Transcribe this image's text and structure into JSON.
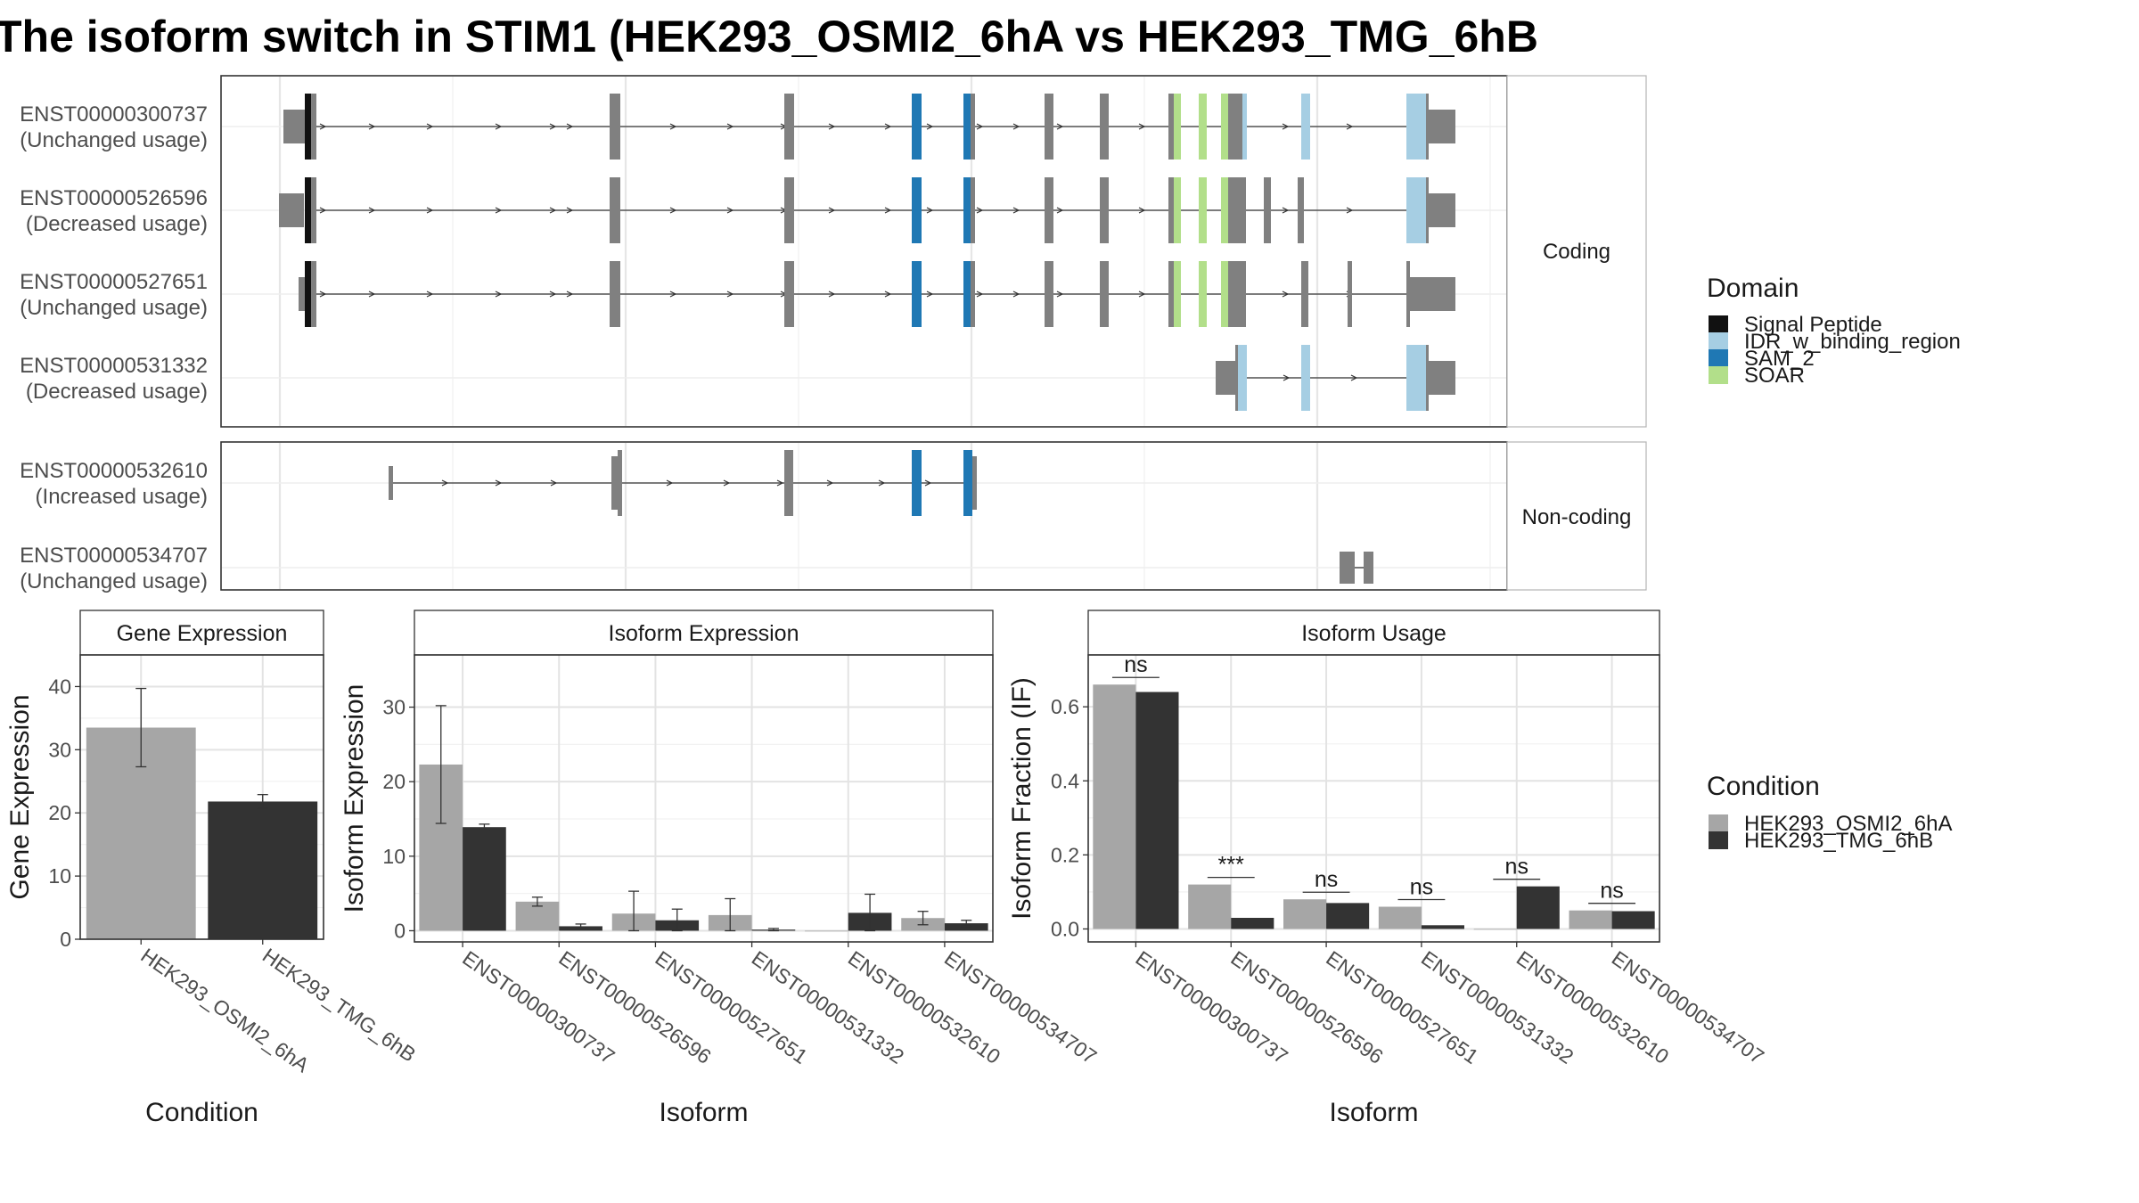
{
  "title": "The isoform switch in STIM1 (HEK293_OSMI2_6hA vs HEK293_TMG_6hB",
  "colors": {
    "signal_peptide": "#111111",
    "idr": "#a6cee3",
    "sam2": "#1f78b4",
    "soar": "#b2df8a",
    "exon": "#808080",
    "cond_a": "#a6a6a6",
    "cond_b": "#333333"
  },
  "structure": {
    "facets": [
      "Coding",
      "Non-coding"
    ],
    "coding_tracks": [
      {
        "id": "ENST00000300737",
        "usage": "(Unchanged usage)"
      },
      {
        "id": "ENST00000526596",
        "usage": "(Decreased usage)"
      },
      {
        "id": "ENST00000527651",
        "usage": "(Unchanged usage)"
      },
      {
        "id": "ENST00000531332",
        "usage": "(Decreased usage)"
      }
    ],
    "noncoding_tracks": [
      {
        "id": "ENST00000532610",
        "usage": "(Increased usage)"
      },
      {
        "id": "ENST00000534707",
        "usage": "(Unchanged usage)"
      }
    ]
  },
  "legend_domain": {
    "title": "Domain",
    "items": [
      {
        "label": "Signal Peptide",
        "color": "#111111"
      },
      {
        "label": "IDR_w_binding_region",
        "color": "#a6cee3"
      },
      {
        "label": "SAM_2",
        "color": "#1f78b4"
      },
      {
        "label": "SOAR",
        "color": "#b2df8a"
      }
    ]
  },
  "legend_condition": {
    "title": "Condition",
    "items": [
      {
        "label": "HEK293_OSMI2_6hA",
        "color": "#a6a6a6"
      },
      {
        "label": "HEK293_TMG_6hB",
        "color": "#333333"
      }
    ]
  },
  "chart_data": [
    {
      "type": "bar",
      "title": "Gene Expression",
      "xlabel": "Condition",
      "ylabel": "Gene Expression",
      "categories": [
        "HEK293_OSMI2_6hA",
        "HEK293_TMG_6hB"
      ],
      "values": [
        33.5,
        21.8
      ],
      "error_low": [
        27.3,
        20.7
      ],
      "error_high": [
        39.7,
        22.9
      ],
      "ylim": [
        0,
        45
      ],
      "yticks": [
        0,
        10,
        20,
        30,
        40
      ]
    },
    {
      "type": "bar",
      "title": "Isoform Expression",
      "xlabel": "Isoform",
      "ylabel": "Isoform Expression",
      "categories": [
        "ENST00000300737",
        "ENST00000526596",
        "ENST00000527651",
        "ENST00000531332",
        "ENST00000532610",
        "ENST00000534707"
      ],
      "series": [
        {
          "name": "HEK293_OSMI2_6hA",
          "values": [
            22.3,
            3.9,
            2.3,
            2.1,
            0.0,
            1.7
          ],
          "error_low": [
            14.4,
            3.3,
            0.0,
            0.0,
            0.0,
            0.8
          ],
          "error_high": [
            30.2,
            4.5,
            5.3,
            4.3,
            0.0,
            2.6
          ]
        },
        {
          "name": "HEK293_TMG_6hB",
          "values": [
            13.9,
            0.6,
            1.4,
            0.15,
            2.4,
            1.0
          ],
          "error_low": [
            13.5,
            0.3,
            0.0,
            0.0,
            0.0,
            0.6
          ],
          "error_high": [
            14.3,
            0.9,
            2.9,
            0.3,
            4.9,
            1.4
          ]
        }
      ],
      "ylim": [
        -1.5,
        37
      ],
      "yticks": [
        0,
        10,
        20,
        30
      ]
    },
    {
      "type": "bar",
      "title": "Isoform Usage",
      "xlabel": "Isoform",
      "ylabel": "Isoform Fraction (IF)",
      "categories": [
        "ENST00000300737",
        "ENST00000526596",
        "ENST00000527651",
        "ENST00000531332",
        "ENST00000532610",
        "ENST00000534707"
      ],
      "series": [
        {
          "name": "HEK293_OSMI2_6hA",
          "values": [
            0.66,
            0.12,
            0.08,
            0.06,
            0.0,
            0.05
          ]
        },
        {
          "name": "HEK293_TMG_6hB",
          "values": [
            0.64,
            0.03,
            0.07,
            0.01,
            0.115,
            0.048
          ]
        }
      ],
      "significance": [
        "ns",
        "***",
        "ns",
        "ns",
        "ns",
        "ns"
      ],
      "ylim": [
        -0.035,
        0.74
      ],
      "yticks": [
        0.0,
        0.2,
        0.4,
        0.6
      ],
      "ytick_labels": [
        "0.0",
        "0.2",
        "0.4",
        "0.6"
      ]
    }
  ]
}
